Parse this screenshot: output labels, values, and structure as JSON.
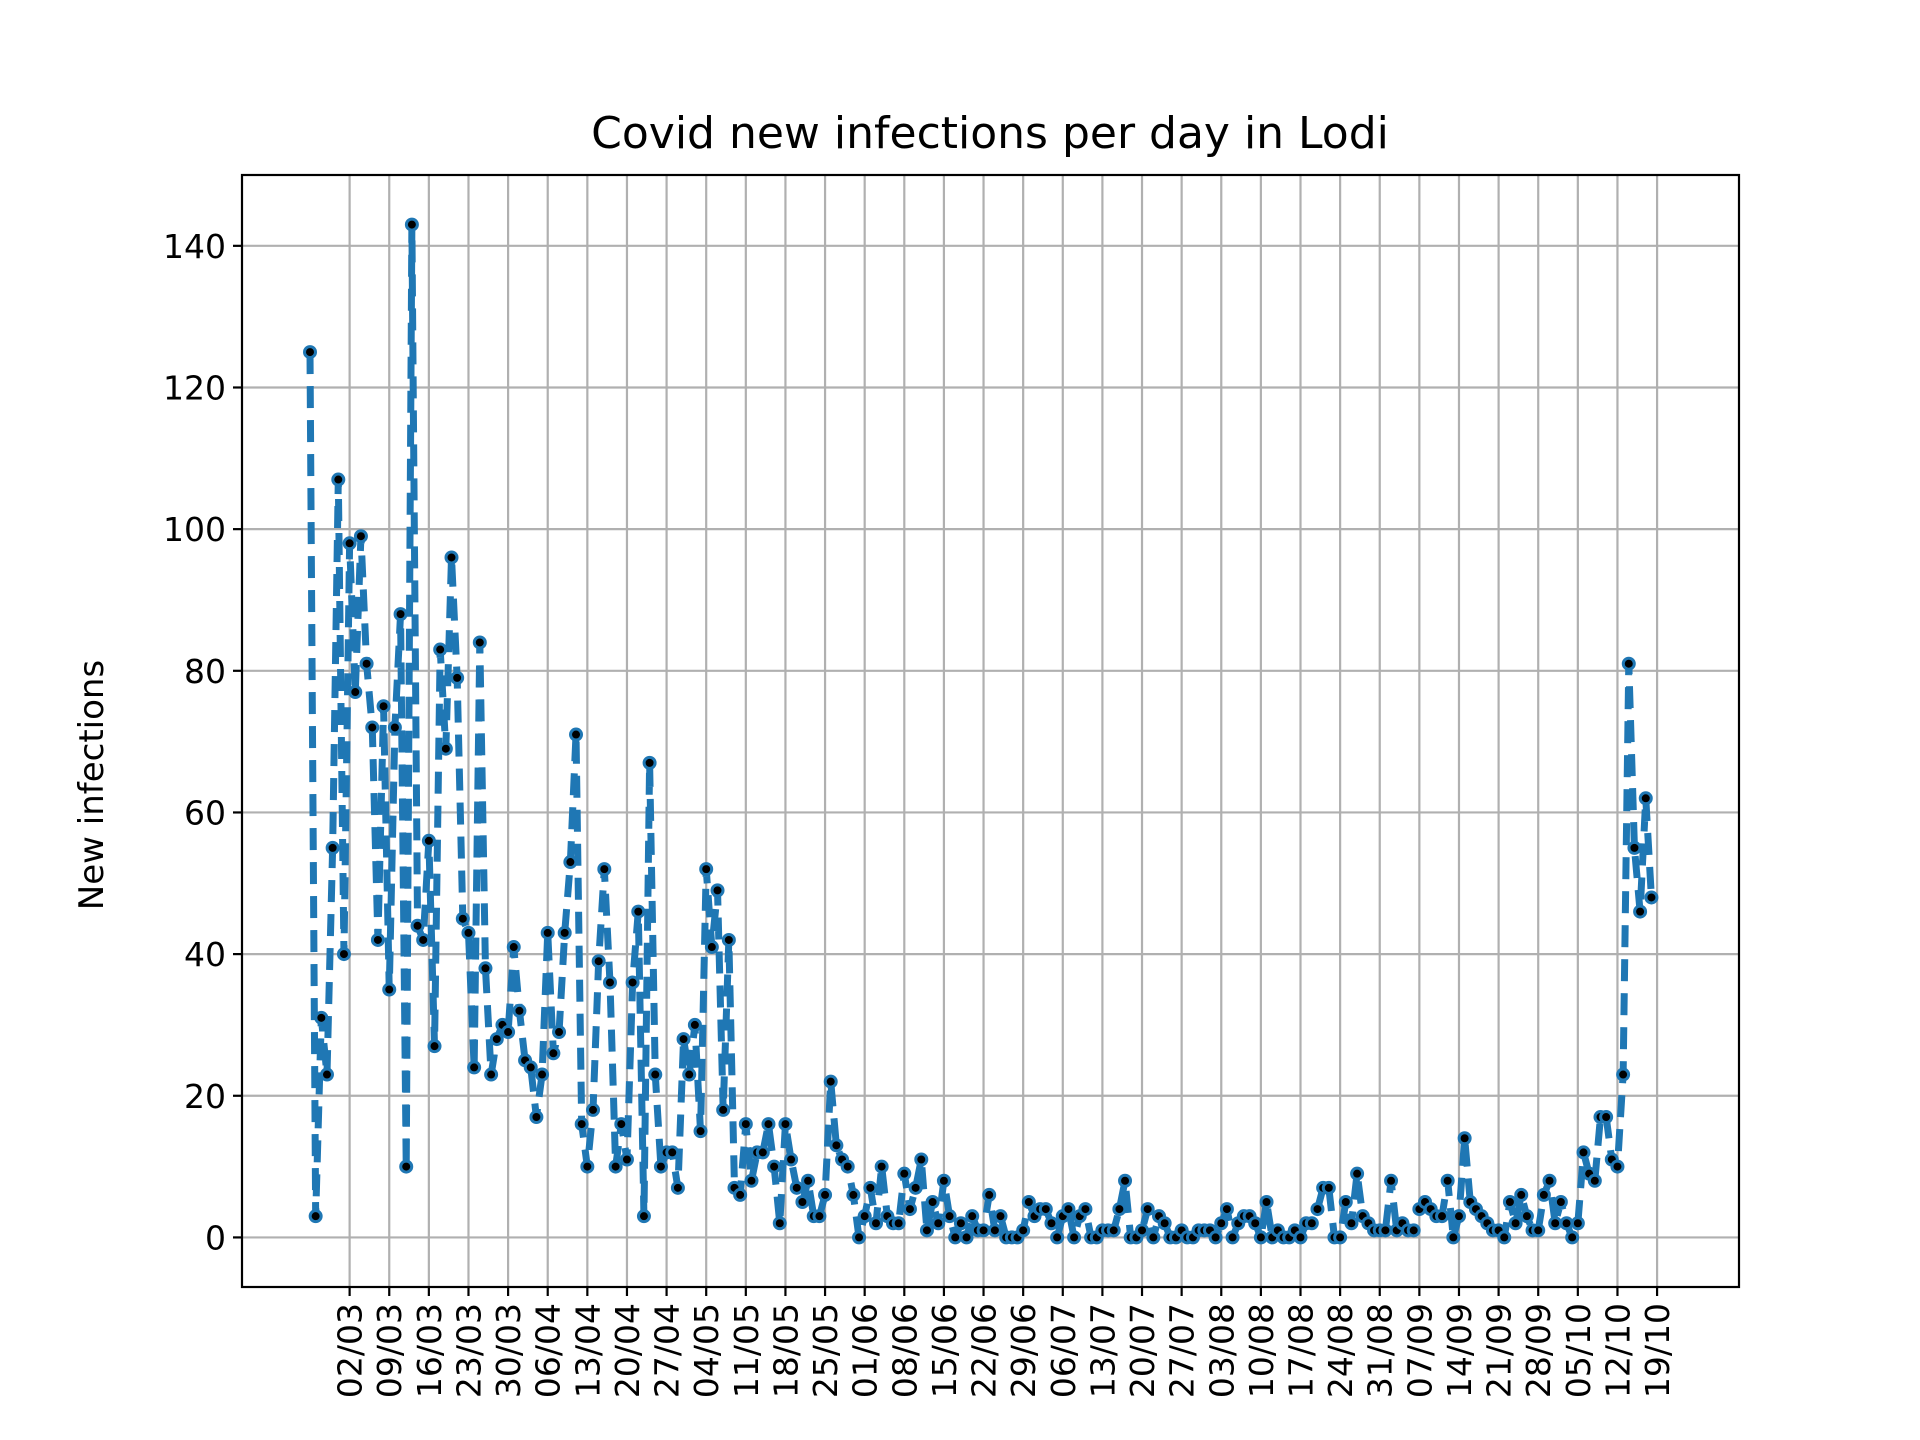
{
  "chart_data": {
    "type": "line",
    "title": "Covid new infections per day in Lodi",
    "xlabel": "",
    "ylabel": "New infections",
    "ylim": [
      -7,
      150
    ],
    "yticks": [
      0,
      20,
      40,
      60,
      80,
      100,
      120,
      140
    ],
    "grid": true,
    "x_start": "2020-02-24",
    "xticks": [
      "02/03",
      "09/03",
      "16/03",
      "23/03",
      "30/03",
      "06/04",
      "13/04",
      "20/04",
      "27/04",
      "04/05",
      "11/05",
      "18/05",
      "25/05",
      "01/06",
      "08/06",
      "15/06",
      "22/06",
      "29/06",
      "06/07",
      "13/07",
      "20/07",
      "27/07",
      "03/08",
      "10/08",
      "17/08",
      "24/08",
      "31/08",
      "07/09",
      "14/09",
      "21/09",
      "28/09",
      "05/10",
      "12/10",
      "19/10"
    ],
    "series": [
      {
        "color": "#1f77b4",
        "marker_color": "#000000",
        "line_style": "dashed",
        "values": [
          125,
          3,
          31,
          23,
          55,
          107,
          40,
          98,
          77,
          99,
          81,
          72,
          42,
          75,
          35,
          72,
          88,
          10,
          143,
          44,
          42,
          56,
          27,
          83,
          69,
          96,
          79,
          45,
          43,
          24,
          84,
          38,
          23,
          28,
          30,
          29,
          41,
          32,
          25,
          24,
          17,
          23,
          43,
          26,
          29,
          43,
          53,
          71,
          16,
          10,
          18,
          39,
          52,
          36,
          10,
          16,
          11,
          36,
          46,
          3,
          67,
          23,
          10,
          12,
          12,
          7,
          28,
          23,
          30,
          15,
          52,
          41,
          49,
          18,
          42,
          7,
          6,
          16,
          8,
          12,
          12,
          16,
          10,
          2,
          16,
          11,
          7,
          5,
          8,
          3,
          3,
          6,
          22,
          13,
          11,
          10,
          6,
          0,
          3,
          7,
          2,
          10,
          3,
          2,
          2,
          9,
          4,
          7,
          11,
          1,
          5,
          2,
          8,
          3,
          0,
          2,
          0,
          3,
          1,
          1,
          6,
          1,
          3,
          0,
          0,
          0,
          1,
          5,
          3,
          4,
          4,
          2,
          0,
          3,
          4,
          0,
          3,
          4,
          0,
          0,
          1,
          1,
          1,
          4,
          8,
          0,
          0,
          1,
          4,
          0,
          3,
          2,
          0,
          0,
          1,
          0,
          0,
          1,
          1,
          1,
          0,
          2,
          4,
          0,
          2,
          3,
          3,
          2,
          0,
          5,
          0,
          1,
          0,
          0,
          1,
          0,
          2,
          2,
          4,
          7,
          7,
          0,
          0,
          5,
          2,
          9,
          3,
          2,
          1,
          1,
          1,
          8,
          1,
          2,
          1,
          1,
          4,
          5,
          4,
          3,
          3,
          8,
          0,
          3,
          14,
          5,
          4,
          3,
          2,
          1,
          1,
          0,
          5,
          2,
          6,
          3,
          1,
          1,
          6,
          8,
          2,
          5,
          2,
          0,
          2,
          12,
          9,
          8,
          17,
          17,
          11,
          10,
          23,
          81,
          55,
          46,
          62,
          48
        ]
      }
    ]
  }
}
